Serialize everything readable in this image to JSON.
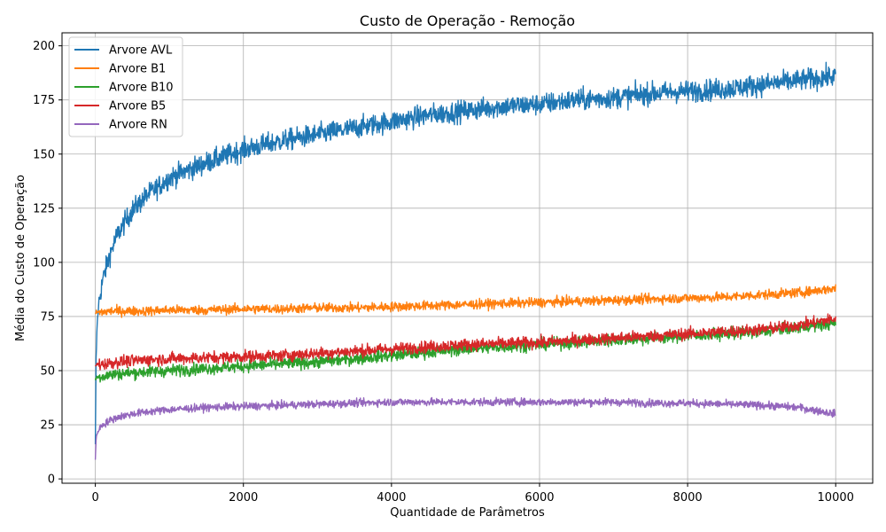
{
  "chart_data": {
    "type": "line",
    "title": "Custo de Operação - Remoção",
    "xlabel": "Quantidade de Parâmetros",
    "ylabel": "Média do Custo de Operação",
    "xlim": [
      -450,
      10500
    ],
    "ylim": [
      -2,
      206
    ],
    "xticks": [
      0,
      2000,
      4000,
      6000,
      8000,
      10000
    ],
    "xtick_labels": [
      "0",
      "2000",
      "4000",
      "6000",
      "8000",
      "10000"
    ],
    "yticks": [
      0,
      25,
      50,
      75,
      100,
      125,
      150,
      175,
      200
    ],
    "ytick_labels": [
      "0",
      "25",
      "50",
      "75",
      "100",
      "125",
      "150",
      "175",
      "200"
    ],
    "grid": true,
    "legend_position": "top-left",
    "x": [
      0,
      10,
      25,
      50,
      100,
      200,
      300,
      500,
      700,
      1000,
      1500,
      2000,
      2500,
      3000,
      3500,
      4000,
      4500,
      5000,
      5500,
      6000,
      6500,
      7000,
      7500,
      8000,
      8500,
      9000,
      9500,
      10000
    ],
    "series": [
      {
        "name": "Arvore AVL",
        "color": "#1f77b4",
        "noise": 4.5,
        "values": [
          15,
          55,
          72,
          82,
          92,
          104,
          113,
          124,
          131,
          139,
          146,
          152,
          156,
          159,
          162,
          165,
          168,
          170,
          172,
          173,
          175,
          176,
          178,
          179,
          180,
          182,
          184,
          186
        ]
      },
      {
        "name": "Arvore B1",
        "color": "#ff7f0e",
        "noise": 2.0,
        "values": [
          76,
          77,
          77,
          77,
          77,
          77.5,
          77.5,
          77.5,
          77.5,
          78,
          78,
          78.5,
          78.5,
          79,
          79,
          79.5,
          80,
          80.5,
          81,
          81.5,
          82,
          82.5,
          83,
          83.5,
          84,
          85,
          86,
          88
        ]
      },
      {
        "name": "Arvore B10",
        "color": "#2ca02c",
        "noise": 2.5,
        "values": [
          46,
          46.5,
          47,
          47,
          47.5,
          48,
          48.5,
          49,
          49.5,
          50,
          51,
          52,
          53,
          54,
          55.5,
          57,
          58.5,
          60,
          61,
          62,
          63,
          64,
          65,
          66,
          67,
          68,
          70,
          72
        ]
      },
      {
        "name": "Arvore B5",
        "color": "#d62728",
        "noise": 2.5,
        "values": [
          52,
          52.5,
          53,
          53,
          53,
          53.5,
          54,
          54.5,
          55,
          55.5,
          56,
          56.5,
          57,
          58,
          59,
          60,
          61,
          62,
          62.5,
          63,
          64,
          65,
          66,
          67,
          68,
          69,
          71,
          74
        ]
      },
      {
        "name": "Arvore RN",
        "color": "#9467bd",
        "noise": 1.6,
        "values": [
          9,
          18,
          21,
          23,
          25,
          27,
          28.5,
          30,
          31,
          32,
          33,
          33.5,
          34,
          34.5,
          35,
          35.5,
          35.5,
          35.5,
          35.5,
          35.5,
          35.5,
          35.5,
          35,
          35,
          34.5,
          34,
          33,
          30
        ]
      }
    ]
  }
}
